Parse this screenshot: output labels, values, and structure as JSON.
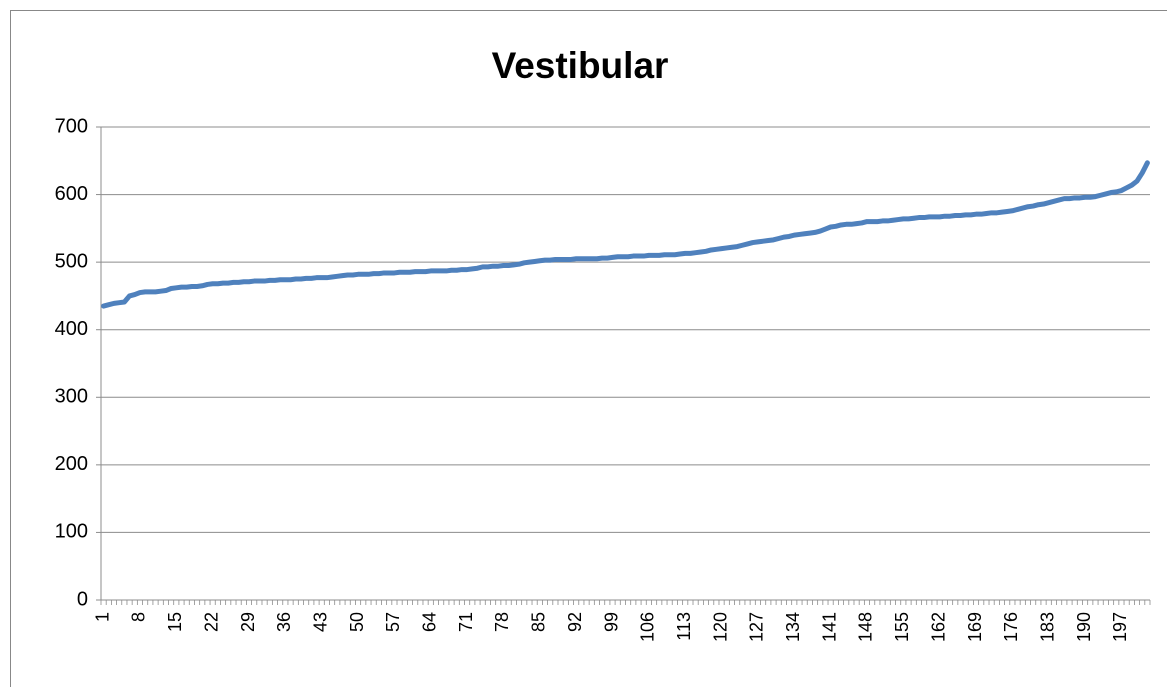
{
  "chart_data": {
    "type": "line",
    "title": "Vestibular",
    "categories": [
      1,
      null,
      null,
      null,
      null,
      null,
      null,
      8,
      null,
      null,
      null,
      null,
      null,
      null,
      15,
      null,
      null,
      null,
      null,
      null,
      null,
      22,
      null,
      null,
      null,
      null,
      null,
      null,
      29,
      null,
      null,
      null,
      null,
      null,
      null,
      36,
      null,
      null,
      null,
      null,
      null,
      null,
      43,
      null,
      null,
      null,
      null,
      null,
      null,
      50,
      null,
      null,
      null,
      null,
      null,
      null,
      57,
      null,
      null,
      null,
      null,
      null,
      null,
      64,
      null,
      null,
      null,
      null,
      null,
      null,
      71,
      null,
      null,
      null,
      null,
      null,
      null,
      78,
      null,
      null,
      null,
      null,
      null,
      null,
      85,
      null,
      null,
      null,
      null,
      null,
      null,
      92,
      null,
      null,
      null,
      null,
      null,
      null,
      99,
      null,
      null,
      null,
      null,
      null,
      null,
      106,
      null,
      null,
      null,
      null,
      null,
      null,
      113,
      null,
      null,
      null,
      null,
      null,
      null,
      120,
      null,
      null,
      null,
      null,
      null,
      null,
      127,
      null,
      null,
      null,
      null,
      null,
      null,
      134,
      null,
      null,
      null,
      null,
      null,
      null,
      141,
      null,
      null,
      null,
      null,
      null,
      null,
      148,
      null,
      null,
      null,
      null,
      null,
      null,
      155,
      null,
      null,
      null,
      null,
      null,
      null,
      162,
      null,
      null,
      null,
      null,
      null,
      null,
      169,
      null,
      null,
      null,
      null,
      null,
      null,
      176,
      null,
      null,
      null,
      null,
      null,
      null,
      183,
      null,
      null,
      null,
      null,
      null,
      null,
      190,
      null,
      null,
      null,
      null,
      null,
      null,
      197,
      null,
      null,
      null,
      null,
      null
    ],
    "values": [
      435,
      437,
      439,
      440,
      441,
      450,
      452,
      455,
      456,
      456,
      456,
      457,
      458,
      461,
      462,
      463,
      463,
      464,
      464,
      465,
      467,
      468,
      468,
      469,
      469,
      470,
      470,
      471,
      471,
      472,
      472,
      472,
      473,
      473,
      474,
      474,
      474,
      475,
      475,
      476,
      476,
      477,
      477,
      477,
      478,
      479,
      480,
      481,
      481,
      482,
      482,
      482,
      483,
      483,
      484,
      484,
      484,
      485,
      485,
      485,
      486,
      486,
      486,
      487,
      487,
      487,
      487,
      488,
      488,
      489,
      489,
      490,
      491,
      493,
      493,
      494,
      494,
      495,
      495,
      496,
      497,
      499,
      500,
      501,
      502,
      503,
      503,
      504,
      504,
      504,
      504,
      505,
      505,
      505,
      505,
      505,
      506,
      506,
      507,
      508,
      508,
      508,
      509,
      509,
      509,
      510,
      510,
      510,
      511,
      511,
      511,
      512,
      513,
      513,
      514,
      515,
      516,
      518,
      519,
      520,
      521,
      522,
      523,
      525,
      527,
      529,
      530,
      531,
      532,
      533,
      535,
      537,
      538,
      540,
      541,
      542,
      543,
      544,
      546,
      549,
      552,
      553,
      555,
      556,
      556,
      557,
      558,
      560,
      560,
      560,
      561,
      561,
      562,
      563,
      564,
      564,
      565,
      566,
      566,
      567,
      567,
      567,
      568,
      568,
      569,
      569,
      570,
      570,
      571,
      571,
      572,
      573,
      573,
      574,
      575,
      576,
      578,
      580,
      582,
      583,
      585,
      586,
      588,
      590,
      592,
      594,
      594,
      595,
      595,
      596,
      596,
      597,
      599,
      601,
      603,
      604,
      606,
      610,
      614,
      620,
      632,
      647
    ],
    "color": "#4f81bd",
    "ylim": [
      0,
      700
    ],
    "yticks": [
      0,
      100,
      200,
      300,
      400,
      500,
      600,
      700
    ],
    "grid": true
  }
}
